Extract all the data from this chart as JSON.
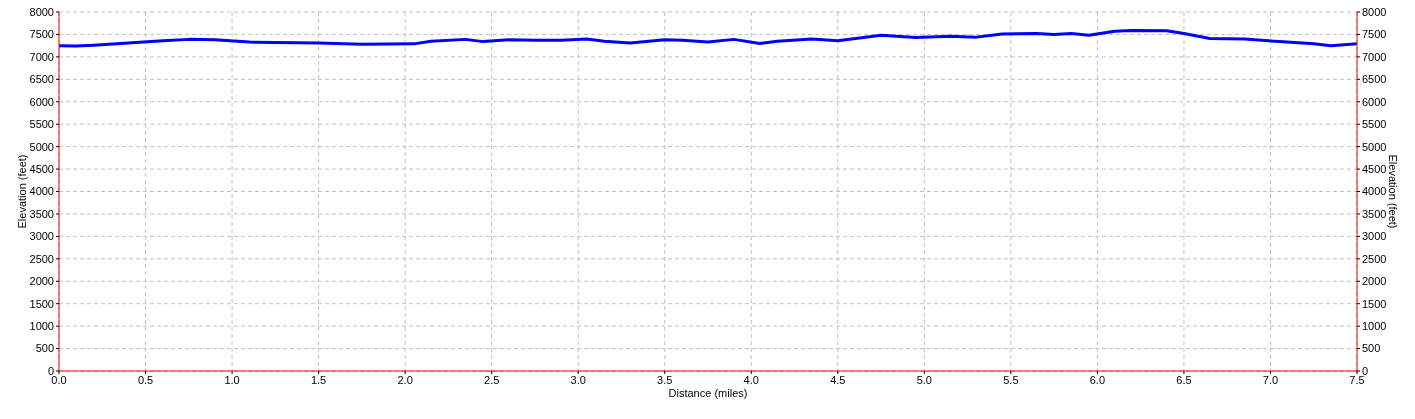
{
  "chart_data": {
    "type": "line",
    "xlabel": "Distance (miles)",
    "ylabel": "Elevation (feet)",
    "y2label": "Elevation (feet)",
    "x": [
      0,
      0.1,
      0.2,
      0.4,
      0.6,
      0.75,
      0.9,
      1.1,
      1.5,
      1.75,
      2.05,
      2.15,
      2.35,
      2.45,
      2.6,
      2.75,
      2.9,
      3.05,
      3.15,
      3.3,
      3.5,
      3.6,
      3.75,
      3.9,
      4.05,
      4.15,
      4.35,
      4.5,
      4.75,
      4.95,
      5.15,
      5.3,
      5.45,
      5.65,
      5.75,
      5.85,
      5.95,
      6.1,
      6.2,
      6.4,
      6.5,
      6.65,
      6.85,
      7.05,
      7.25,
      7.35,
      7.5
    ],
    "series": [
      {
        "color": "#0000ff",
        "values": [
          7250,
          7240,
          7260,
          7310,
          7360,
          7390,
          7380,
          7330,
          7310,
          7280,
          7290,
          7350,
          7390,
          7340,
          7380,
          7370,
          7370,
          7400,
          7350,
          7310,
          7380,
          7370,
          7330,
          7390,
          7300,
          7350,
          7400,
          7360,
          7480,
          7430,
          7460,
          7440,
          7510,
          7520,
          7500,
          7520,
          7480,
          7570,
          7590,
          7580,
          7520,
          7410,
          7400,
          7340,
          7290,
          7250,
          7290
        ]
      }
    ],
    "xlim": [
      0,
      7.5
    ],
    "xticks": [
      {
        "value": 0,
        "label": "0.0"
      },
      {
        "value": 0.5,
        "label": "0.5"
      },
      {
        "value": 1,
        "label": "1.0"
      },
      {
        "value": 1.5,
        "label": "1.5"
      },
      {
        "value": 2,
        "label": "2.0"
      },
      {
        "value": 2.5,
        "label": "2.5"
      },
      {
        "value": 3,
        "label": "3.0"
      },
      {
        "value": 3.5,
        "label": "3.5"
      },
      {
        "value": 4,
        "label": "4.0"
      },
      {
        "value": 4.5,
        "label": "4.5"
      },
      {
        "value": 5,
        "label": "5.0"
      },
      {
        "value": 5.5,
        "label": "5.5"
      },
      {
        "value": 6,
        "label": "6.0"
      },
      {
        "value": 6.5,
        "label": "6.5"
      },
      {
        "value": 7,
        "label": "7.0"
      },
      {
        "value": 7.5,
        "label": "7.5"
      }
    ],
    "ylim": [
      0,
      8000
    ],
    "yticks": [
      0,
      500,
      1000,
      1500,
      2000,
      2500,
      3000,
      3500,
      4000,
      4500,
      5000,
      5500,
      6000,
      6500,
      7000,
      7500,
      8000
    ],
    "y2lim": [
      0,
      8000
    ],
    "y2ticks": [
      0,
      500,
      1000,
      1500,
      2000,
      2500,
      3000,
      3500,
      4000,
      4500,
      5000,
      5500,
      6000,
      6500,
      7000,
      7500,
      8000
    ],
    "grid": true,
    "marker": "none",
    "line_style": "solid"
  }
}
